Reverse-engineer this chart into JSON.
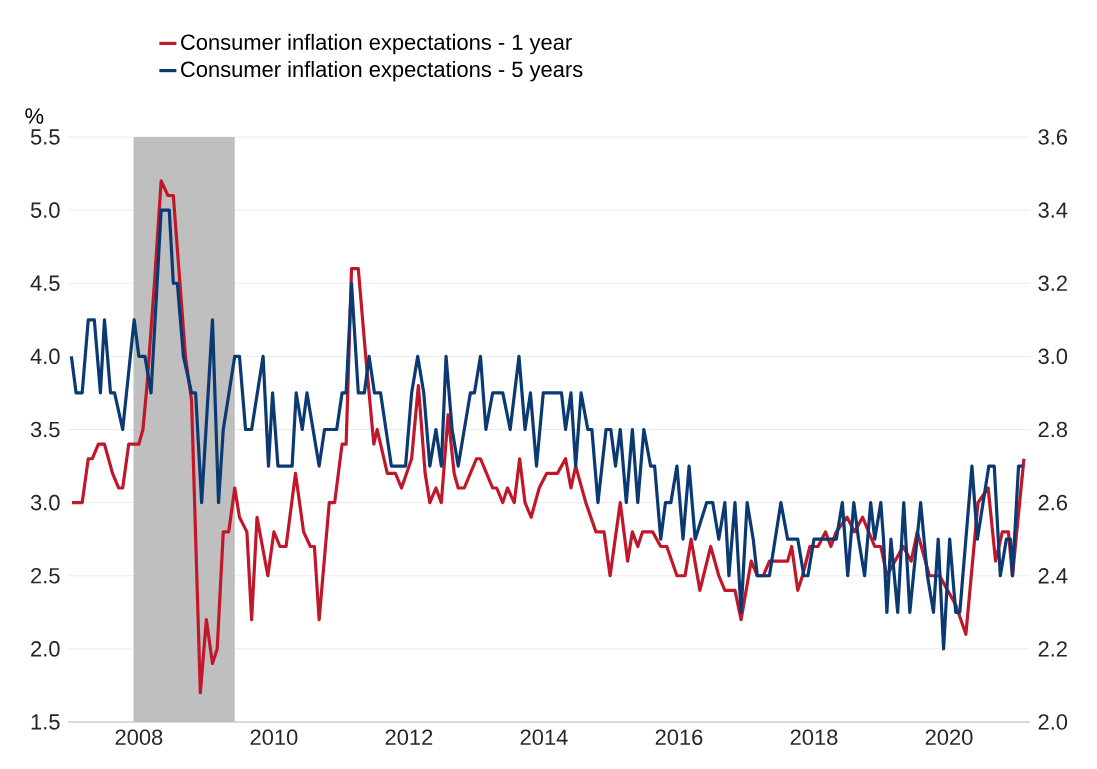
{
  "chart_data": {
    "type": "line",
    "ylabel": "%",
    "series": [
      {
        "name": "Consumer inflation expectations - 1 year",
        "color": "#c0182a",
        "axis": "y",
        "x": [
          2007.01,
          2007.16,
          2007.25,
          2007.31,
          2007.4,
          2007.49,
          2007.61,
          2007.7,
          2007.76,
          2007.85,
          2008.0,
          2008.06,
          2008.12,
          2008.23,
          2008.33,
          2008.43,
          2008.51,
          2008.69,
          2008.78,
          2008.91,
          2009.0,
          2009.09,
          2009.16,
          2009.25,
          2009.33,
          2009.42,
          2009.49,
          2009.6,
          2009.67,
          2009.75,
          2009.91,
          2010.0,
          2010.09,
          2010.18,
          2010.32,
          2010.44,
          2010.54,
          2010.6,
          2010.67,
          2010.82,
          2010.9,
          2011.01,
          2011.07,
          2011.15,
          2011.25,
          2011.36,
          2011.48,
          2011.53,
          2011.68,
          2011.8,
          2011.89,
          2012.04,
          2012.14,
          2012.24,
          2012.31,
          2012.4,
          2012.48,
          2012.58,
          2012.67,
          2012.73,
          2012.82,
          2013.0,
          2013.06,
          2013.15,
          2013.24,
          2013.3,
          2013.39,
          2013.46,
          2013.56,
          2013.64,
          2013.72,
          2013.81,
          2013.93,
          2014.04,
          2014.2,
          2014.32,
          2014.4,
          2014.47,
          2014.62,
          2014.77,
          2014.89,
          2014.98,
          2015.13,
          2015.24,
          2015.31,
          2015.39,
          2015.46,
          2015.61,
          2015.73,
          2015.82,
          2015.97,
          2016.09,
          2016.18,
          2016.31,
          2016.47,
          2016.59,
          2016.68,
          2016.83,
          2016.92,
          2017.07,
          2017.16,
          2017.25,
          2017.34,
          2017.61,
          2017.67,
          2017.76,
          2017.83,
          2017.94,
          2018.06,
          2018.17,
          2018.25,
          2018.33,
          2018.49,
          2018.6,
          2018.72,
          2018.9,
          2018.99,
          2019.08,
          2019.2,
          2019.32,
          2019.44,
          2019.53,
          2019.71,
          2019.86,
          2020.1,
          2020.25,
          2020.43,
          2020.58,
          2020.69,
          2020.79,
          2020.88,
          2020.94,
          2021.11
        ],
        "values": [
          3.0,
          3.0,
          3.3,
          3.3,
          3.4,
          3.4,
          3.2,
          3.1,
          3.1,
          3.4,
          3.4,
          3.5,
          3.8,
          4.5,
          5.2,
          5.1,
          5.1,
          4.0,
          3.7,
          1.7,
          2.2,
          1.9,
          2.0,
          2.8,
          2.8,
          3.1,
          2.9,
          2.8,
          2.2,
          2.9,
          2.5,
          2.8,
          2.7,
          2.7,
          3.2,
          2.8,
          2.7,
          2.7,
          2.2,
          3.0,
          3.0,
          3.4,
          3.4,
          4.6,
          4.6,
          4.0,
          3.4,
          3.5,
          3.2,
          3.2,
          3.1,
          3.3,
          3.8,
          3.2,
          3.0,
          3.1,
          3.0,
          3.6,
          3.2,
          3.1,
          3.1,
          3.3,
          3.3,
          3.2,
          3.1,
          3.1,
          3.0,
          3.1,
          3.0,
          3.3,
          3.0,
          2.9,
          3.1,
          3.2,
          3.2,
          3.3,
          3.1,
          3.25,
          3.0,
          2.8,
          2.8,
          2.5,
          3.0,
          2.6,
          2.8,
          2.7,
          2.8,
          2.8,
          2.7,
          2.7,
          2.5,
          2.5,
          2.75,
          2.4,
          2.7,
          2.5,
          2.4,
          2.4,
          2.2,
          2.6,
          2.5,
          2.5,
          2.6,
          2.6,
          2.7,
          2.4,
          2.5,
          2.7,
          2.7,
          2.8,
          2.7,
          2.8,
          2.9,
          2.8,
          2.9,
          2.7,
          2.7,
          2.5,
          2.6,
          2.7,
          2.6,
          2.8,
          2.5,
          2.5,
          2.3,
          2.1,
          3.0,
          3.1,
          2.6,
          2.8,
          2.8,
          2.5,
          3.3
        ]
      },
      {
        "name": "Consumer inflation expectations - 5 years",
        "color": "#0b3a73",
        "axis": "y2",
        "x": [
          2007.0,
          2007.07,
          2007.16,
          2007.25,
          2007.34,
          2007.43,
          2007.49,
          2007.58,
          2007.64,
          2007.76,
          2007.93,
          2008.0,
          2008.09,
          2008.18,
          2008.33,
          2008.45,
          2008.51,
          2008.57,
          2008.66,
          2008.78,
          2008.84,
          2008.93,
          2009.09,
          2009.18,
          2009.25,
          2009.42,
          2009.49,
          2009.58,
          2009.67,
          2009.84,
          2009.92,
          2009.98,
          2010.06,
          2010.27,
          2010.33,
          2010.42,
          2010.49,
          2010.67,
          2010.75,
          2010.93,
          2011.01,
          2011.07,
          2011.15,
          2011.25,
          2011.34,
          2011.41,
          2011.49,
          2011.58,
          2011.74,
          2011.95,
          2012.04,
          2012.13,
          2012.22,
          2012.31,
          2012.4,
          2012.48,
          2012.55,
          2012.64,
          2012.73,
          2012.91,
          2012.97,
          2013.06,
          2013.14,
          2013.24,
          2013.39,
          2013.5,
          2013.63,
          2013.72,
          2013.8,
          2013.89,
          2013.99,
          2014.26,
          2014.32,
          2014.4,
          2014.47,
          2014.55,
          2014.65,
          2014.71,
          2014.8,
          2014.92,
          2014.99,
          2015.06,
          2015.13,
          2015.22,
          2015.31,
          2015.39,
          2015.48,
          2015.58,
          2015.64,
          2015.73,
          2015.8,
          2015.88,
          2015.97,
          2016.06,
          2016.15,
          2016.24,
          2016.41,
          2016.5,
          2016.59,
          2016.68,
          2016.74,
          2016.83,
          2016.92,
          2017.01,
          2017.1,
          2017.16,
          2017.34,
          2017.51,
          2017.61,
          2017.76,
          2017.85,
          2017.91,
          2018.0,
          2018.33,
          2018.42,
          2018.5,
          2018.59,
          2018.66,
          2018.75,
          2018.84,
          2018.9,
          2018.99,
          2019.03,
          2019.08,
          2019.14,
          2019.24,
          2019.33,
          2019.42,
          2019.58,
          2019.68,
          2019.77,
          2019.84,
          2019.92,
          2020.01,
          2020.1,
          2020.16,
          2020.34,
          2020.42,
          2020.59,
          2020.67,
          2020.76,
          2020.85,
          2020.91,
          2020.94,
          2021.03,
          2021.09
        ],
        "values": [
          3.0,
          2.9,
          2.9,
          3.1,
          3.1,
          2.9,
          3.1,
          2.9,
          2.9,
          2.8,
          3.1,
          3.0,
          3.0,
          2.9,
          3.4,
          3.4,
          3.2,
          3.2,
          3.0,
          2.9,
          2.9,
          2.6,
          3.1,
          2.6,
          2.8,
          3.0,
          3.0,
          2.8,
          2.8,
          3.0,
          2.7,
          2.9,
          2.7,
          2.7,
          2.9,
          2.8,
          2.9,
          2.7,
          2.8,
          2.8,
          2.9,
          2.9,
          3.2,
          2.9,
          2.9,
          3.0,
          2.9,
          2.9,
          2.7,
          2.7,
          2.9,
          3.0,
          2.9,
          2.7,
          2.8,
          2.7,
          3.0,
          2.8,
          2.7,
          2.9,
          2.9,
          3.0,
          2.8,
          2.9,
          2.9,
          2.8,
          3.0,
          2.8,
          2.9,
          2.7,
          2.9,
          2.9,
          2.8,
          2.9,
          2.7,
          2.9,
          2.8,
          2.8,
          2.6,
          2.8,
          2.8,
          2.7,
          2.8,
          2.6,
          2.8,
          2.6,
          2.8,
          2.7,
          2.7,
          2.5,
          2.6,
          2.6,
          2.7,
          2.5,
          2.7,
          2.5,
          2.6,
          2.6,
          2.5,
          2.6,
          2.4,
          2.6,
          2.3,
          2.6,
          2.5,
          2.4,
          2.4,
          2.6,
          2.5,
          2.5,
          2.4,
          2.4,
          2.5,
          2.5,
          2.6,
          2.4,
          2.6,
          2.5,
          2.4,
          2.6,
          2.5,
          2.6,
          2.5,
          2.3,
          2.5,
          2.3,
          2.6,
          2.3,
          2.6,
          2.4,
          2.3,
          2.5,
          2.2,
          2.5,
          2.3,
          2.3,
          2.7,
          2.5,
          2.7,
          2.7,
          2.4,
          2.5,
          2.5,
          2.4,
          2.7,
          2.7
        ]
      }
    ],
    "xlim": [
      2006.95,
      2021.2
    ],
    "xticks": [
      2008,
      2010,
      2012,
      2014,
      2016,
      2018,
      2020
    ],
    "ylim": [
      1.5,
      5.5
    ],
    "yticks": [
      1.5,
      {
        "value": 2,
        "label": "2.0"
      },
      2.5,
      {
        "value": 3,
        "label": "3.0"
      },
      3.5,
      {
        "value": 4,
        "label": "4.0"
      },
      4.5,
      {
        "value": 5,
        "label": "5.0"
      },
      5.5
    ],
    "y2lim": [
      2.0,
      3.6
    ],
    "y2ticks": [
      {
        "value": 2,
        "label": "2.0"
      },
      2.2,
      2.4,
      2.6,
      2.8,
      {
        "value": 3,
        "label": "3.0"
      },
      3.2,
      3.4,
      3.6
    ],
    "bands": [
      {
        "axis": "x",
        "from": 2007.92,
        "to": 2009.42,
        "color": "#bfbfbf"
      }
    ],
    "grid": "y",
    "legend": "top"
  }
}
